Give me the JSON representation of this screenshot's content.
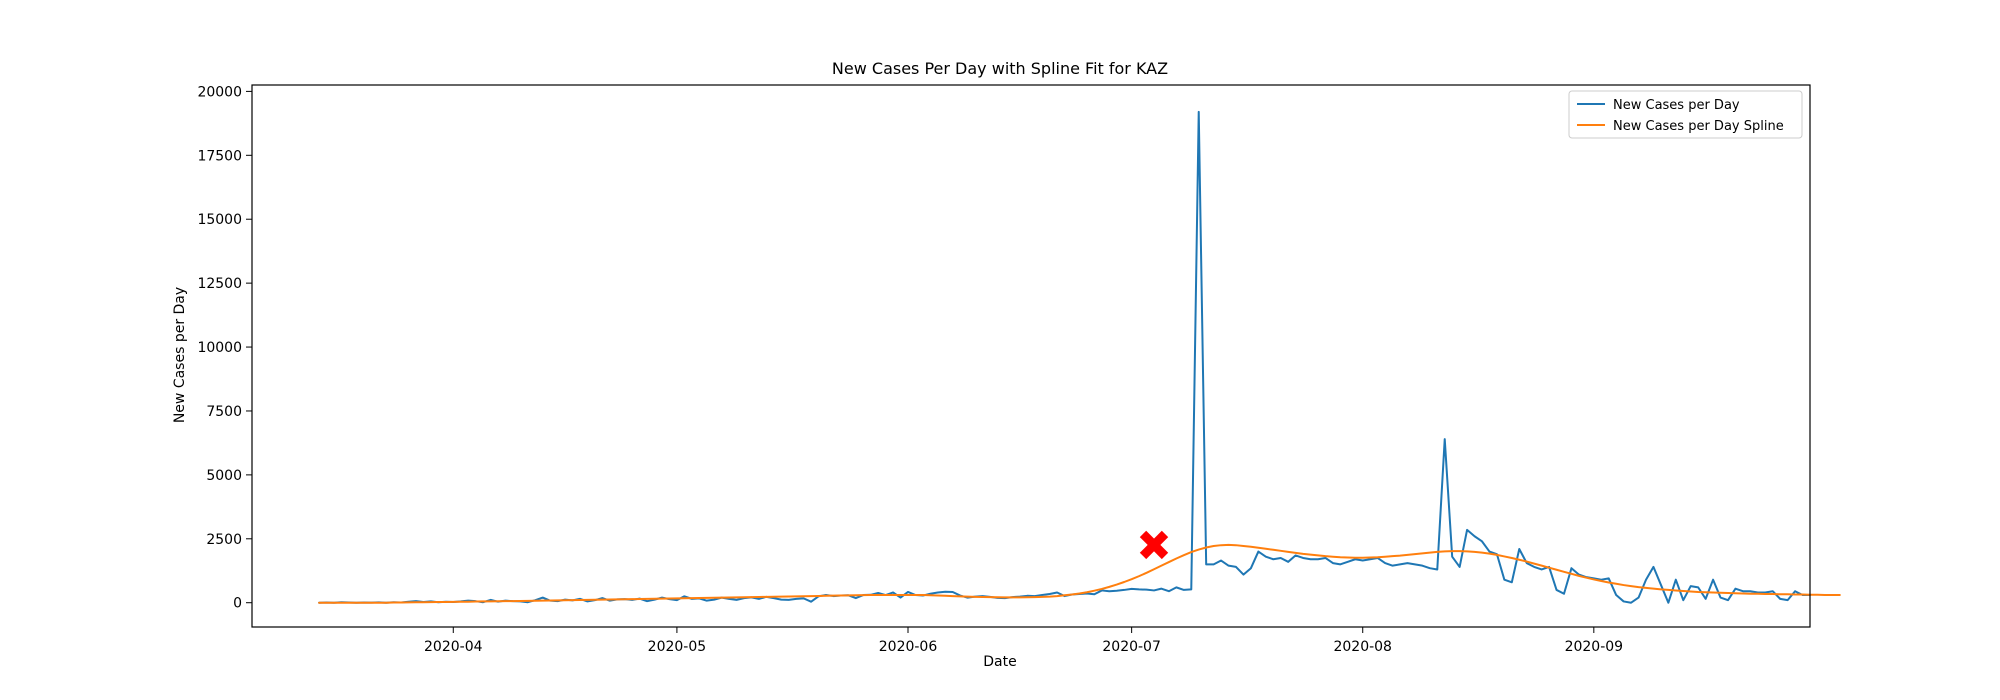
{
  "chart_data": {
    "type": "line",
    "title": "New Cases Per Day with Spline Fit for KAZ",
    "xlabel": "Date",
    "ylabel": "New Cases per Day",
    "ylim": [
      -950,
      20250
    ],
    "xlim": [
      "2020-03-05",
      "2020-09-30"
    ],
    "yticks": [
      0,
      2500,
      5000,
      7500,
      10000,
      12500,
      15000,
      17500,
      20000
    ],
    "xticks": [
      "2020-04",
      "2020-05",
      "2020-06",
      "2020-07",
      "2020-08",
      "2020-09"
    ],
    "grid": false,
    "legend_position": "top-right",
    "x_start": "2020-03-14",
    "series": [
      {
        "name": "New Cases per Day",
        "color": "#1f77b4",
        "values": [
          0,
          10,
          0,
          20,
          10,
          0,
          10,
          5,
          15,
          0,
          20,
          10,
          40,
          60,
          30,
          50,
          20,
          40,
          30,
          50,
          80,
          60,
          20,
          110,
          40,
          80,
          60,
          50,
          20,
          100,
          200,
          80,
          60,
          120,
          90,
          150,
          50,
          100,
          180,
          80,
          130,
          140,
          110,
          160,
          60,
          120,
          200,
          140,
          100,
          250,
          150,
          170,
          80,
          120,
          200,
          150,
          110,
          180,
          210,
          150,
          230,
          180,
          120,
          110,
          150,
          170,
          40,
          250,
          300,
          260,
          280,
          290,
          180,
          300,
          310,
          380,
          300,
          400,
          200,
          420,
          300,
          280,
          350,
          400,
          430,
          420,
          280,
          200,
          240,
          260,
          230,
          190,
          180,
          220,
          240,
          270,
          260,
          300,
          340,
          400,
          260,
          320,
          340,
          360,
          330,
          480,
          450,
          470,
          500,
          540,
          520,
          510,
          480,
          550,
          450,
          600,
          500,
          520,
          19200,
          1500,
          1500,
          1650,
          1450,
          1400,
          1100,
          1350,
          2000,
          1800,
          1700,
          1750,
          1600,
          1850,
          1750,
          1700,
          1700,
          1750,
          1550,
          1500,
          1600,
          1700,
          1650,
          1700,
          1750,
          1550,
          1450,
          1500,
          1550,
          1500,
          1450,
          1350,
          1300,
          6400,
          1800,
          1400,
          2850,
          2600,
          2400,
          2000,
          1900,
          900,
          800,
          2100,
          1550,
          1400,
          1300,
          1400,
          500,
          350,
          1350,
          1100,
          1000,
          950,
          900,
          950,
          300,
          50,
          0,
          200,
          900,
          1400,
          700,
          0,
          900,
          100,
          650,
          600,
          150,
          900,
          200,
          100,
          550,
          450,
          450,
          400,
          400,
          450,
          150,
          100,
          450,
          300,
          300
        ]
      },
      {
        "name": "New Cases per Day Spline",
        "color": "#ff7f0e",
        "values": [
          0,
          0,
          0,
          0,
          0,
          0,
          0,
          0,
          0,
          0,
          10,
          10,
          15,
          20,
          20,
          25,
          30,
          30,
          35,
          40,
          40,
          45,
          50,
          50,
          55,
          60,
          60,
          65,
          70,
          75,
          80,
          85,
          90,
          95,
          100,
          105,
          110,
          115,
          120,
          125,
          130,
          135,
          140,
          145,
          150,
          155,
          160,
          165,
          170,
          175,
          180,
          185,
          190,
          195,
          200,
          205,
          210,
          215,
          220,
          225,
          230,
          235,
          240,
          245,
          250,
          255,
          260,
          265,
          270,
          275,
          280,
          285,
          290,
          295,
          300,
          300,
          300,
          300,
          300,
          300,
          300,
          300,
          290,
          280,
          270,
          260,
          250,
          240,
          230,
          225,
          220,
          215,
          210,
          210,
          210,
          215,
          220,
          230,
          240,
          260,
          290,
          320,
          360,
          410,
          470,
          540,
          620,
          710,
          810,
          920,
          1040,
          1170,
          1310,
          1450,
          1590,
          1730,
          1860,
          1980,
          2080,
          2160,
          2220,
          2250,
          2260,
          2250,
          2220,
          2190,
          2150,
          2110,
          2070,
          2030,
          1990,
          1950,
          1910,
          1880,
          1850,
          1820,
          1800,
          1780,
          1770,
          1760,
          1760,
          1770,
          1780,
          1800,
          1820,
          1840,
          1870,
          1900,
          1930,
          1960,
          1990,
          2010,
          2020,
          2020,
          2010,
          1990,
          1960,
          1920,
          1870,
          1810,
          1750,
          1680,
          1610,
          1530,
          1450,
          1370,
          1290,
          1210,
          1130,
          1050,
          980,
          910,
          850,
          790,
          740,
          690,
          650,
          610,
          580,
          550,
          520,
          500,
          480,
          460,
          440,
          420,
          410,
          400,
          390,
          380,
          370,
          360,
          350,
          350,
          340,
          340,
          330,
          330,
          320,
          320,
          310,
          310,
          300,
          300,
          300
        ]
      }
    ],
    "marker": {
      "shape": "x",
      "color": "#ff0000",
      "x": "2020-07-04",
      "y": 2260
    }
  }
}
